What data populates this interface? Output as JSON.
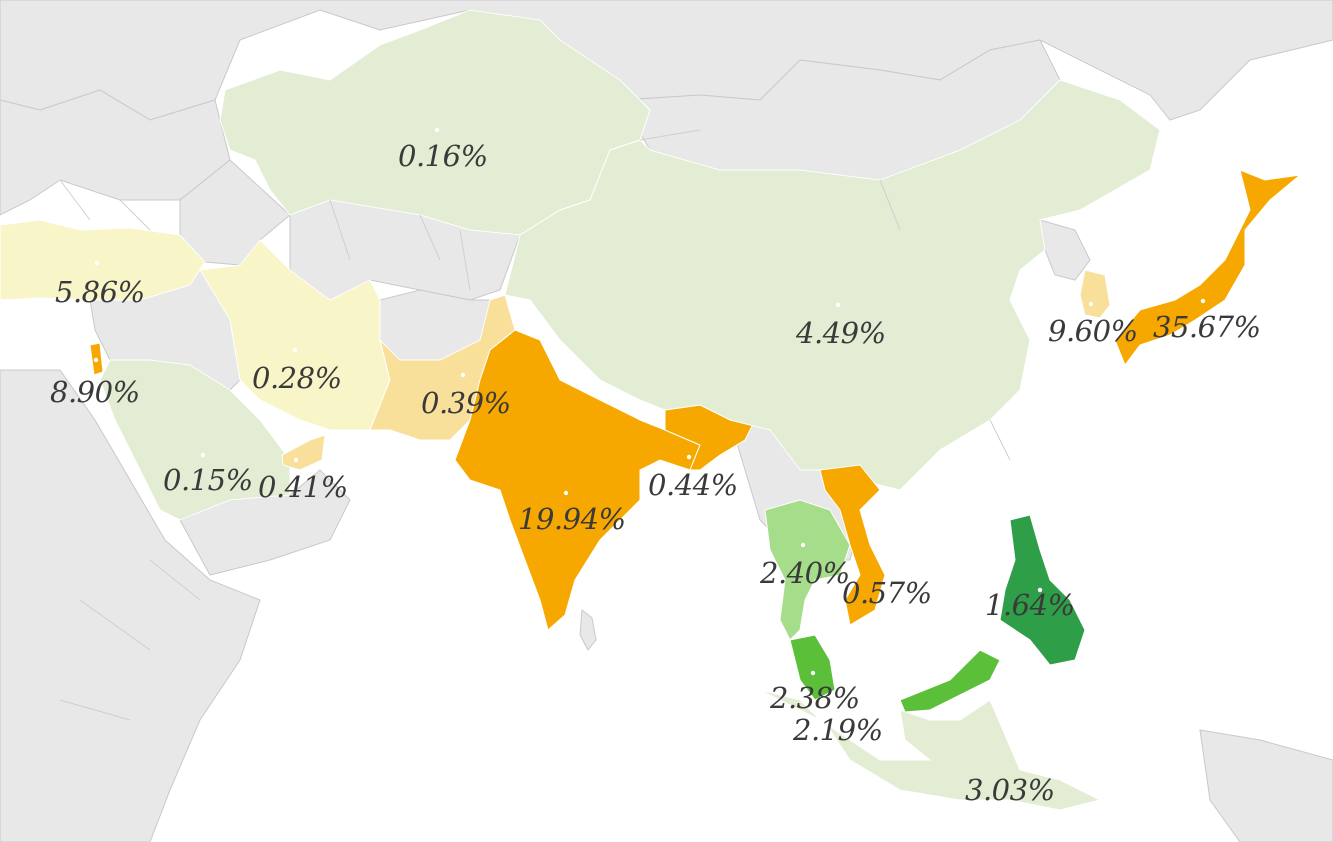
{
  "colors": {
    "ocean": "#ffffff",
    "land_no_data": "#e8e8e8",
    "light_green": "#e2edd3",
    "pale_yellow": "#f8f5c8",
    "light_orange": "#f8df9a",
    "orange": "#f6a800",
    "green_mid": "#a6dd8a",
    "green_bright": "#5cbf3a",
    "green_dark": "#2e9e48",
    "label_text": "#3a3a3a"
  },
  "regions": [
    {
      "id": "kazakhstan",
      "value": "0.16%",
      "color": "#e2edd3"
    },
    {
      "id": "turkey",
      "value": "5.86%",
      "color": "#f8f5c8"
    },
    {
      "id": "israel",
      "value": "8.90%",
      "color": "#f6a800"
    },
    {
      "id": "iran",
      "value": "0.28%",
      "color": "#f8f5c8"
    },
    {
      "id": "pakistan",
      "value": "0.39%",
      "color": "#f8df9a"
    },
    {
      "id": "saudi-arabia",
      "value": "0.15%",
      "color": "#e2edd3"
    },
    {
      "id": "uae",
      "value": "0.41%",
      "color": "#f8df9a"
    },
    {
      "id": "india",
      "value": "19.94%",
      "color": "#f6a800"
    },
    {
      "id": "bangladesh",
      "value": "0.44%",
      "color": "#f6a800"
    },
    {
      "id": "china",
      "value": "4.49%",
      "color": "#e2edd3"
    },
    {
      "id": "south-korea",
      "value": "9.60%",
      "color": "#f8df9a"
    },
    {
      "id": "japan",
      "value": "35.67%",
      "color": "#f6a800"
    },
    {
      "id": "thailand",
      "value": "2.40%",
      "color": "#a6dd8a"
    },
    {
      "id": "vietnam",
      "value": "0.57%",
      "color": "#f6a800"
    },
    {
      "id": "philippines",
      "value": "1.64%",
      "color": "#2e9e48"
    },
    {
      "id": "malaysia",
      "value": "2.38%",
      "color": "#5cbf3a"
    },
    {
      "id": "singapore",
      "value": "2.19%",
      "color": "#5cbf3a"
    },
    {
      "id": "indonesia",
      "value": "3.03%",
      "color": "#e2edd3"
    }
  ]
}
